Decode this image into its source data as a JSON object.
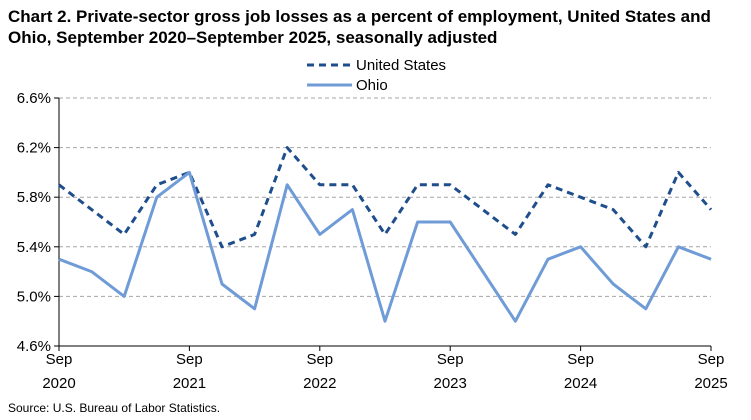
{
  "chart_data": {
    "type": "line",
    "title": "Chart 2. Private-sector gross job losses as a percent of employment, United States and Ohio, September 2020–September 2025, seasonally adjusted",
    "source": "Source: U.S. Bureau of Labor Statistics.",
    "x": [
      "Sep 2020",
      "Dec 2020",
      "Mar 2021",
      "Jun 2021",
      "Sep 2021",
      "Dec 2021",
      "Mar 2022",
      "Jun 2022",
      "Sep 2022",
      "Dec 2022",
      "Mar 2023",
      "Jun 2023",
      "Sep 2023",
      "Dec 2023",
      "Mar 2024",
      "Jun 2024",
      "Sep 2024",
      "Dec 2024",
      "Mar 2025",
      "Jun 2025",
      "Sep 2025"
    ],
    "x_tick_labels": [
      {
        "index": 0,
        "month": "Sep",
        "year": "2020"
      },
      {
        "index": 4,
        "month": "Sep",
        "year": "2021"
      },
      {
        "index": 8,
        "month": "Sep",
        "year": "2022"
      },
      {
        "index": 12,
        "month": "Sep",
        "year": "2023"
      },
      {
        "index": 16,
        "month": "Sep",
        "year": "2024"
      },
      {
        "index": 20,
        "month": "Sep",
        "year": "2025"
      }
    ],
    "y_ticks": [
      4.6,
      5.0,
      5.4,
      5.8,
      6.2,
      6.6
    ],
    "y_tick_labels": [
      "4.6%",
      "5.0%",
      "5.4%",
      "5.8%",
      "6.2%",
      "6.6%"
    ],
    "ylim": [
      4.6,
      6.6
    ],
    "grid": true,
    "legend_position": "top-center",
    "series": [
      {
        "name": "United States",
        "style": "dashed",
        "color": "#1f4e8c",
        "values": [
          5.9,
          5.7,
          5.5,
          5.9,
          6.0,
          5.4,
          5.5,
          6.2,
          5.9,
          5.9,
          5.5,
          5.9,
          5.9,
          5.7,
          5.5,
          5.9,
          5.8,
          5.7,
          5.4,
          6.0,
          5.7
        ]
      },
      {
        "name": "Ohio",
        "style": "solid",
        "color": "#6f9bd6",
        "values": [
          5.3,
          5.2,
          5.0,
          5.8,
          6.0,
          5.1,
          4.9,
          5.9,
          5.5,
          5.7,
          4.8,
          5.6,
          5.6,
          5.2,
          4.8,
          5.3,
          5.4,
          5.1,
          4.9,
          5.4,
          5.3
        ]
      }
    ]
  }
}
